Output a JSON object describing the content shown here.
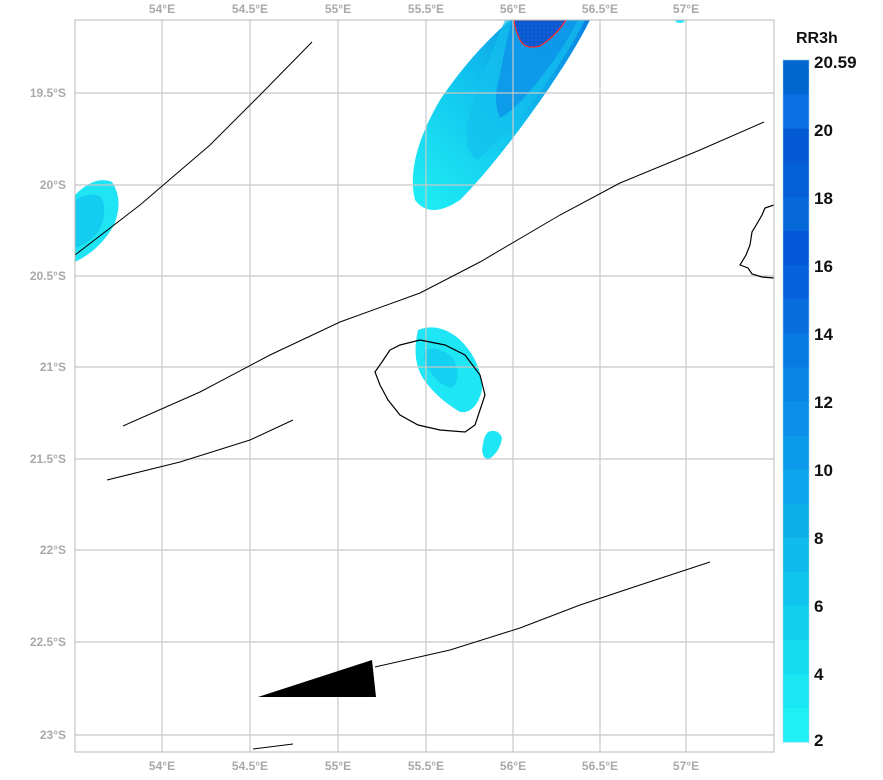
{
  "map": {
    "lon_labels": [
      "54°E",
      "54.5°E",
      "55°E",
      "55.5°E",
      "56°E",
      "56.5°E",
      "57°E"
    ],
    "lon_labels_top": [
      "54°E",
      "54.5°E",
      "55°E",
      "55.5°E",
      "56°E",
      "56.5°E",
      "57°E"
    ],
    "lat_labels": [
      "19.5°S",
      "20°S",
      "20.5°S",
      "21°S",
      "21.5°S",
      "22°S",
      "22.5°S",
      "23°S"
    ],
    "grid_color": "#c8c8c8",
    "coast_color": "#000000",
    "warning_contour_color": "#ff2a2a"
  },
  "colorbar": {
    "title": "RR3h",
    "max_label": "20.59",
    "tick_labels": [
      "20",
      "18",
      "16",
      "14",
      "12",
      "10",
      "8",
      "6",
      "4",
      "2"
    ],
    "colors_low_to_high": [
      "#1ff0f4",
      "#19e7f4",
      "#15dcf1",
      "#12d1ef",
      "#10c6ee",
      "#0fbbed",
      "#0eb0ec",
      "#0da5eb",
      "#0c9aea",
      "#0b8fe9",
      "#0a84e6",
      "#0979e3",
      "#086ee0",
      "#0763dd",
      "#0658da",
      "#0568d8",
      "#0460d6",
      "#035ad4",
      "#0a6fe2",
      "#0066d0"
    ]
  }
}
